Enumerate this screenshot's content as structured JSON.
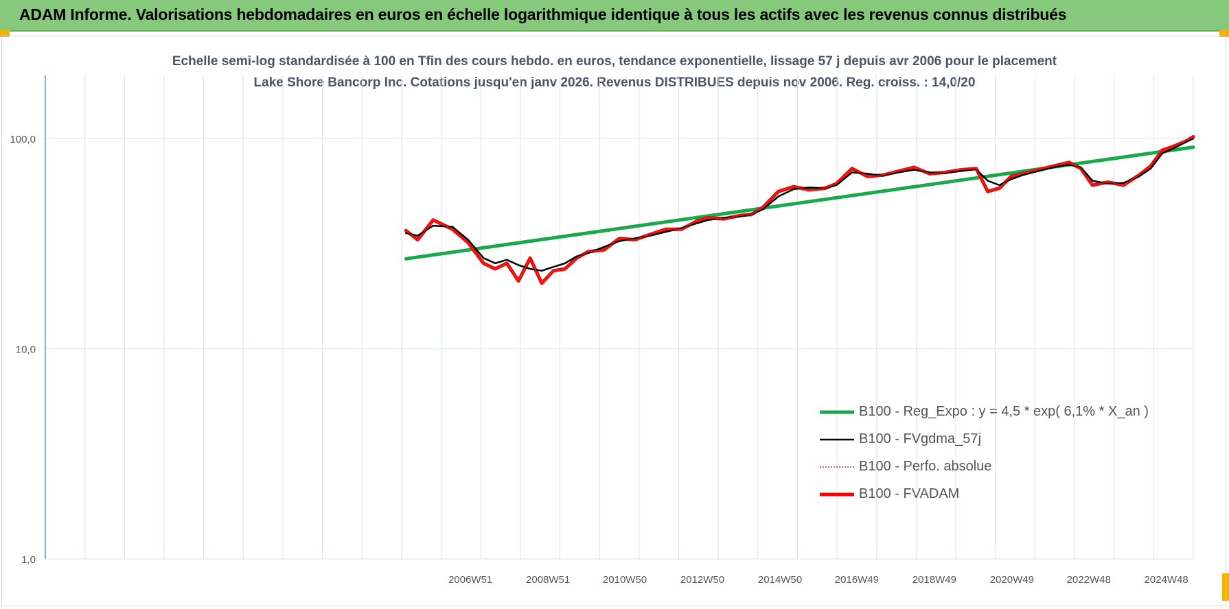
{
  "banner": {
    "title": "ADAM Informe. Valorisations hebdomadaires en euros en échelle logarithmique identique à tous les actifs avec les revenus connus distribués",
    "color": "#86c97d"
  },
  "chart_data": {
    "type": "line",
    "title": "Echelle semi-log standardisée à 100 en Tfin des cours hebdo. en euros, tendance exponentielle, lissage 57 j depuis avr 2006 pour le placement Lake Shore Bancorp Inc. Cotations jusqu'en janv 2026. Revenus DISTRIBUES depuis nov 2006. Reg. croiss. : 14,0/20",
    "xlabel": "",
    "ylabel": "",
    "y_scale": "log",
    "ylim": [
      1,
      100
    ],
    "y_ticks": [
      "100,0",
      "10,0",
      "1,0"
    ],
    "x_ticks": [
      "2006W51",
      "2008W51",
      "2010W50",
      "2012W50",
      "2014W50",
      "2016W49",
      "2018W49",
      "2020W49",
      "2022W48",
      "2024W48"
    ],
    "xlim": [
      1996.0,
      2025.6
    ],
    "grid": true,
    "legend_position": "bottom-right",
    "series": [
      {
        "name": "B100 - Reg_Expo : y = 4,5 * exp( 6,1% *  X_an )",
        "color": "#1aa84c",
        "style": "solid-thick",
        "x": [
          2005.3,
          2025.6
        ],
        "values": [
          26.8,
          91.0
        ]
      },
      {
        "name": "B100 - FVgdma_57j",
        "color": "#000000",
        "style": "solid",
        "x": [
          2005.3,
          2005.6,
          2006.0,
          2006.5,
          2006.9,
          2007.3,
          2007.6,
          2007.9,
          2008.2,
          2008.5,
          2008.8,
          2009.1,
          2009.4,
          2009.7,
          2010.0,
          2010.4,
          2010.8,
          2011.2,
          2011.6,
          2012.0,
          2012.4,
          2012.8,
          2013.1,
          2013.5,
          2013.9,
          2014.2,
          2014.5,
          2014.9,
          2015.3,
          2015.7,
          2016.1,
          2016.4,
          2016.8,
          2017.2,
          2017.6,
          2018.0,
          2018.4,
          2018.8,
          2019.2,
          2019.6,
          2020.0,
          2020.3,
          2020.6,
          2020.9,
          2021.2,
          2021.6,
          2022.0,
          2022.4,
          2022.7,
          2023.0,
          2023.4,
          2023.8,
          2024.2,
          2024.5,
          2024.8,
          2025.1,
          2025.4,
          2025.6
        ],
        "values": [
          35.5,
          34.5,
          38.5,
          38.0,
          33.0,
          27.0,
          25.5,
          26.5,
          25.0,
          24.0,
          23.5,
          24.5,
          25.5,
          27.5,
          28.5,
          30.5,
          32.5,
          33.5,
          34.5,
          36.0,
          37.5,
          39.5,
          41.0,
          42.0,
          42.5,
          43.5,
          46.0,
          53.0,
          57.5,
          58.5,
          58.0,
          60.0,
          69.0,
          68.0,
          66.5,
          69.0,
          71.0,
          69.0,
          68.5,
          70.0,
          71.5,
          63.0,
          60.0,
          64.0,
          67.0,
          70.0,
          73.0,
          75.0,
          73.0,
          63.0,
          61.0,
          61.5,
          66.0,
          72.0,
          85.0,
          90.0,
          96.0,
          100.0
        ]
      },
      {
        "name": "B100 - Perfo. absolue",
        "color": "#c0392b",
        "style": "dotted",
        "x": [
          2005.3,
          2005.6,
          2006.0,
          2006.5,
          2006.9,
          2007.3,
          2007.6,
          2007.9,
          2008.2,
          2008.5,
          2008.8,
          2009.1,
          2009.4,
          2009.7,
          2010.0,
          2010.4,
          2010.8,
          2011.2,
          2011.6,
          2012.0,
          2012.4,
          2012.8,
          2013.1,
          2013.5,
          2013.9,
          2014.2,
          2014.5,
          2014.9,
          2015.3,
          2015.7,
          2016.1,
          2016.4,
          2016.8,
          2017.2,
          2017.6,
          2018.0,
          2018.4,
          2018.8,
          2019.2,
          2019.6,
          2020.0,
          2020.3,
          2020.6,
          2020.9,
          2021.2,
          2021.6,
          2022.0,
          2022.4,
          2022.7,
          2023.0,
          2023.4,
          2023.8,
          2024.2,
          2024.5,
          2024.8,
          2025.1,
          2025.4,
          2025.6
        ],
        "values": [
          36.5,
          33.0,
          41.0,
          37.0,
          32.0,
          25.5,
          24.0,
          25.5,
          21.0,
          27.0,
          20.5,
          23.5,
          24.0,
          27.0,
          29.0,
          29.5,
          33.5,
          33.0,
          35.0,
          37.0,
          37.0,
          40.5,
          42.0,
          41.5,
          43.0,
          43.5,
          47.0,
          56.0,
          59.0,
          57.0,
          58.0,
          61.0,
          72.0,
          66.0,
          67.0,
          70.0,
          73.0,
          68.0,
          69.0,
          71.0,
          72.0,
          56.0,
          58.0,
          66.0,
          68.0,
          71.0,
          74.0,
          77.0,
          72.0,
          60.0,
          62.0,
          60.0,
          67.0,
          74.0,
          88.0,
          92.0,
          97.0,
          102.0
        ]
      },
      {
        "name": "B100 - FVADAM",
        "color": "#ff0000",
        "style": "solid-thick",
        "x": [
          2005.3,
          2005.6,
          2006.0,
          2006.5,
          2006.9,
          2007.3,
          2007.6,
          2007.9,
          2008.2,
          2008.5,
          2008.8,
          2009.1,
          2009.4,
          2009.7,
          2010.0,
          2010.4,
          2010.8,
          2011.2,
          2011.6,
          2012.0,
          2012.4,
          2012.8,
          2013.1,
          2013.5,
          2013.9,
          2014.2,
          2014.5,
          2014.9,
          2015.3,
          2015.7,
          2016.1,
          2016.4,
          2016.8,
          2017.2,
          2017.6,
          2018.0,
          2018.4,
          2018.8,
          2019.2,
          2019.6,
          2020.0,
          2020.3,
          2020.6,
          2020.9,
          2021.2,
          2021.6,
          2022.0,
          2022.4,
          2022.7,
          2023.0,
          2023.4,
          2023.8,
          2024.2,
          2024.5,
          2024.8,
          2025.1,
          2025.4,
          2025.6
        ],
        "values": [
          36.5,
          33.0,
          41.0,
          37.0,
          32.0,
          25.5,
          24.0,
          25.5,
          21.0,
          27.0,
          20.5,
          23.5,
          24.0,
          27.0,
          29.0,
          29.5,
          33.5,
          33.0,
          35.0,
          37.0,
          37.0,
          40.5,
          42.0,
          41.5,
          43.0,
          43.5,
          47.0,
          56.0,
          59.0,
          57.0,
          58.0,
          61.0,
          72.0,
          66.0,
          67.0,
          70.0,
          73.0,
          68.0,
          69.0,
          71.0,
          72.0,
          56.0,
          58.0,
          66.0,
          68.0,
          71.0,
          74.0,
          77.0,
          72.0,
          60.0,
          62.0,
          60.0,
          67.0,
          74.0,
          88.0,
          92.0,
          97.0,
          102.0
        ]
      }
    ]
  }
}
